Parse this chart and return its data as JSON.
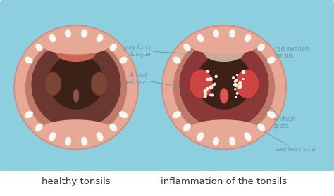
{
  "bg_color": "#8ecfdf",
  "box_color": "#a8dde8",
  "title_bg": "#ffffff",
  "title_left": "healthy tonsils",
  "title_right": "inflammation of the tonsils",
  "label_color": "#6a9aaa",
  "labels": {
    "swollen_uvula": "swollen uvula",
    "whitish_spots": "whitush\nspots",
    "throat_redness": "throat\nredness",
    "gray_furry": "gray furry\ntongue",
    "red_swollen": "red swollen\ntonsils"
  },
  "mouth_lip_color": "#e8a898",
  "mouth_lip_edge": "#d09080",
  "mouth_inner_color": "#c07868",
  "throat_brown": "#6a3830",
  "throat_dark": "#3d2018",
  "tonsil_healthy": "#7a4535",
  "tonsil_inflamed": "#cc4444",
  "tonsil_inflamed_edge": "#aa2222",
  "uvula_healthy": "#8a5555",
  "uvula_inflamed": "#dd5555",
  "tongue_healthy": "#cc6655",
  "tongue_inflamed_color": "#c8aa99",
  "tooth_color": "#f8f8f0",
  "tooth_edge": "#d8d8c0",
  "spot_color": "#f0eedd",
  "font_size_title": 8.5,
  "font_size_label": 6.0,
  "font_size_caption": 9.5
}
